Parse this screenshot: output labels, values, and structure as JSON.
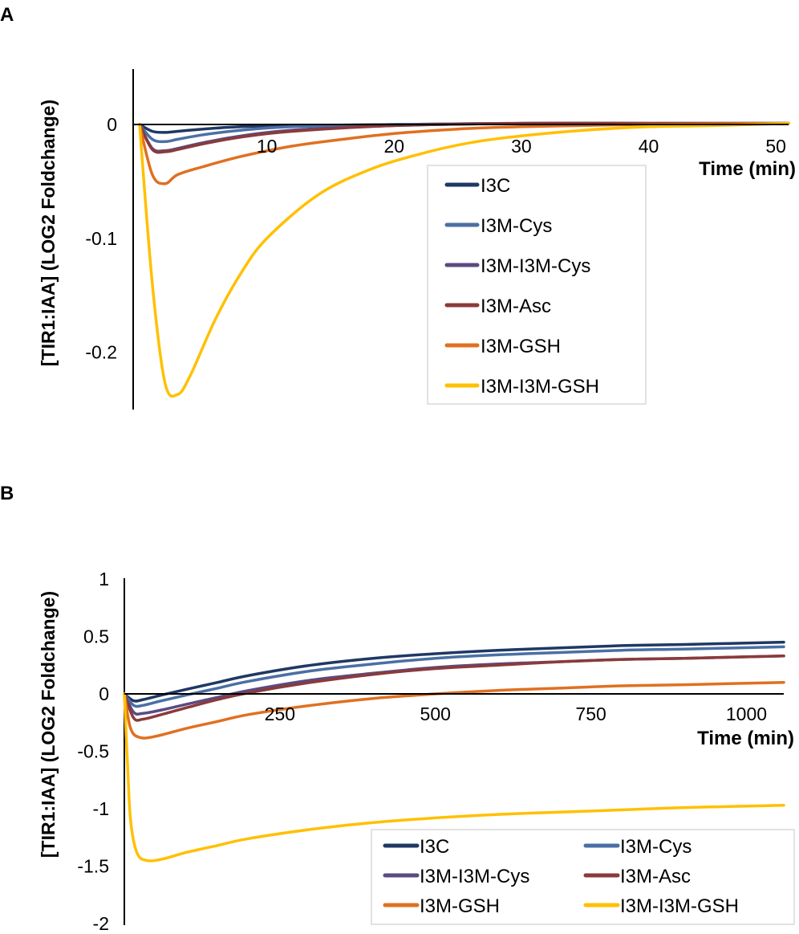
{
  "chart_data": [
    {
      "panel": "A",
      "type": "line",
      "xlabel": "Time (min)",
      "ylabel": "[TIR1:IAA] (LOG2 Foldchange)",
      "xlim": [
        0,
        51
      ],
      "ylim": [
        -0.25,
        0.05
      ],
      "x_ticks": [
        10,
        20,
        30,
        40,
        50
      ],
      "y_ticks": [
        0,
        -0.1,
        -0.2
      ],
      "y_tick_labels": [
        "0",
        "-0.1",
        "-0.2"
      ],
      "legend": "bottom-right, single column",
      "series": [
        {
          "name": "I3C",
          "color": "#1f3864",
          "x": [
            0,
            1,
            2,
            3,
            5,
            8,
            12,
            20,
            30,
            40,
            51
          ],
          "y": [
            0,
            -0.006,
            -0.007,
            -0.006,
            -0.004,
            -0.002,
            -0.001,
            0,
            0.001,
            0.001,
            0.001
          ]
        },
        {
          "name": "I3M-Cys",
          "color": "#4a6fa5",
          "x": [
            0,
            1,
            2,
            3,
            5,
            8,
            12,
            20,
            30,
            40,
            51
          ],
          "y": [
            0,
            -0.013,
            -0.015,
            -0.013,
            -0.009,
            -0.005,
            -0.002,
            0,
            0.001,
            0.001,
            0.001
          ]
        },
        {
          "name": "I3M-I3M-Cys",
          "color": "#5b4a82",
          "x": [
            0,
            1,
            2,
            3,
            5,
            8,
            12,
            20,
            30,
            40,
            51
          ],
          "y": [
            0,
            -0.021,
            -0.023,
            -0.021,
            -0.016,
            -0.01,
            -0.005,
            -0.001,
            0.001,
            0.001,
            0.001
          ]
        },
        {
          "name": "I3M-Asc",
          "color": "#8b3a3a",
          "x": [
            0,
            1,
            2,
            3,
            5,
            8,
            12,
            20,
            30,
            40,
            51
          ],
          "y": [
            0,
            -0.022,
            -0.024,
            -0.022,
            -0.017,
            -0.011,
            -0.006,
            -0.001,
            0.001,
            0.001,
            0.001
          ]
        },
        {
          "name": "I3M-GSH",
          "color": "#e07020",
          "x": [
            0,
            1,
            2,
            3,
            5,
            8,
            12,
            16,
            20,
            25,
            30,
            40,
            51
          ],
          "y": [
            0,
            -0.044,
            -0.052,
            -0.044,
            -0.037,
            -0.028,
            -0.019,
            -0.013,
            -0.008,
            -0.004,
            -0.002,
            0,
            0.001
          ]
        },
        {
          "name": "I3M-I3M-GSH",
          "color": "#ffc000",
          "x": [
            0,
            1,
            2,
            3,
            4,
            6,
            8,
            10,
            14,
            18,
            22,
            26,
            30,
            35,
            40,
            45,
            51
          ],
          "y": [
            0,
            -0.14,
            -0.227,
            -0.237,
            -0.22,
            -0.17,
            -0.13,
            -0.1,
            -0.062,
            -0.04,
            -0.026,
            -0.016,
            -0.01,
            -0.005,
            -0.002,
            -0.001,
            0.001
          ]
        }
      ]
    },
    {
      "panel": "B",
      "type": "line",
      "xlabel": "Time (min)",
      "ylabel": "[TIR1:IAA] (LOG2 Foldchange)",
      "xlim": [
        0,
        1060
      ],
      "ylim": [
        -2,
        1
      ],
      "x_ticks": [
        250,
        500,
        750,
        1000
      ],
      "y_ticks": [
        1,
        0.5,
        0,
        -0.5,
        -1,
        -1.5,
        -2
      ],
      "y_tick_labels": [
        "1",
        "0.5",
        "0",
        "-0.5",
        "-1",
        "-1.5",
        "-2"
      ],
      "legend": "bottom-right, two columns",
      "series": [
        {
          "name": "I3C",
          "color": "#1f3864",
          "x": [
            0,
            15,
            30,
            60,
            100,
            150,
            200,
            300,
            400,
            500,
            600,
            700,
            800,
            900,
            1060
          ],
          "y": [
            0,
            -0.06,
            -0.05,
            -0.01,
            0.04,
            0.1,
            0.16,
            0.25,
            0.31,
            0.35,
            0.38,
            0.4,
            0.42,
            0.43,
            0.45
          ]
        },
        {
          "name": "I3M-Cys",
          "color": "#4a6fa5",
          "x": [
            0,
            15,
            30,
            60,
            100,
            150,
            200,
            300,
            400,
            500,
            600,
            700,
            800,
            900,
            1060
          ],
          "y": [
            0,
            -0.1,
            -0.1,
            -0.06,
            -0.01,
            0.05,
            0.11,
            0.2,
            0.26,
            0.31,
            0.34,
            0.36,
            0.38,
            0.39,
            0.41
          ]
        },
        {
          "name": "I3M-I3M-Cys",
          "color": "#5b4a82",
          "x": [
            0,
            15,
            30,
            60,
            100,
            150,
            200,
            300,
            400,
            500,
            600,
            700,
            800,
            900,
            1060
          ],
          "y": [
            0,
            -0.16,
            -0.17,
            -0.14,
            -0.09,
            -0.03,
            0.03,
            0.12,
            0.18,
            0.23,
            0.26,
            0.28,
            0.3,
            0.31,
            0.33
          ]
        },
        {
          "name": "I3M-Asc",
          "color": "#8b3a3a",
          "x": [
            0,
            15,
            30,
            60,
            100,
            150,
            200,
            300,
            400,
            500,
            600,
            700,
            800,
            900,
            1060
          ],
          "y": [
            0,
            -0.21,
            -0.22,
            -0.18,
            -0.12,
            -0.05,
            0.01,
            0.1,
            0.17,
            0.22,
            0.25,
            0.28,
            0.3,
            0.31,
            0.33
          ]
        },
        {
          "name": "I3M-GSH",
          "color": "#e07020",
          "x": [
            0,
            10,
            25,
            50,
            100,
            150,
            200,
            300,
            400,
            500,
            600,
            700,
            800,
            900,
            1060
          ],
          "y": [
            0,
            -0.3,
            -0.38,
            -0.37,
            -0.3,
            -0.24,
            -0.18,
            -0.1,
            -0.04,
            0,
            0.03,
            0.05,
            0.07,
            0.08,
            0.1
          ]
        },
        {
          "name": "I3M-I3M-GSH",
          "color": "#ffc000",
          "x": [
            0,
            5,
            10,
            20,
            35,
            60,
            100,
            150,
            200,
            300,
            400,
            500,
            600,
            700,
            800,
            900,
            1060
          ],
          "y": [
            0,
            -0.6,
            -1.1,
            -1.38,
            -1.45,
            -1.44,
            -1.38,
            -1.32,
            -1.26,
            -1.18,
            -1.12,
            -1.08,
            -1.05,
            -1.03,
            -1.01,
            -0.99,
            -0.97
          ]
        }
      ]
    }
  ]
}
